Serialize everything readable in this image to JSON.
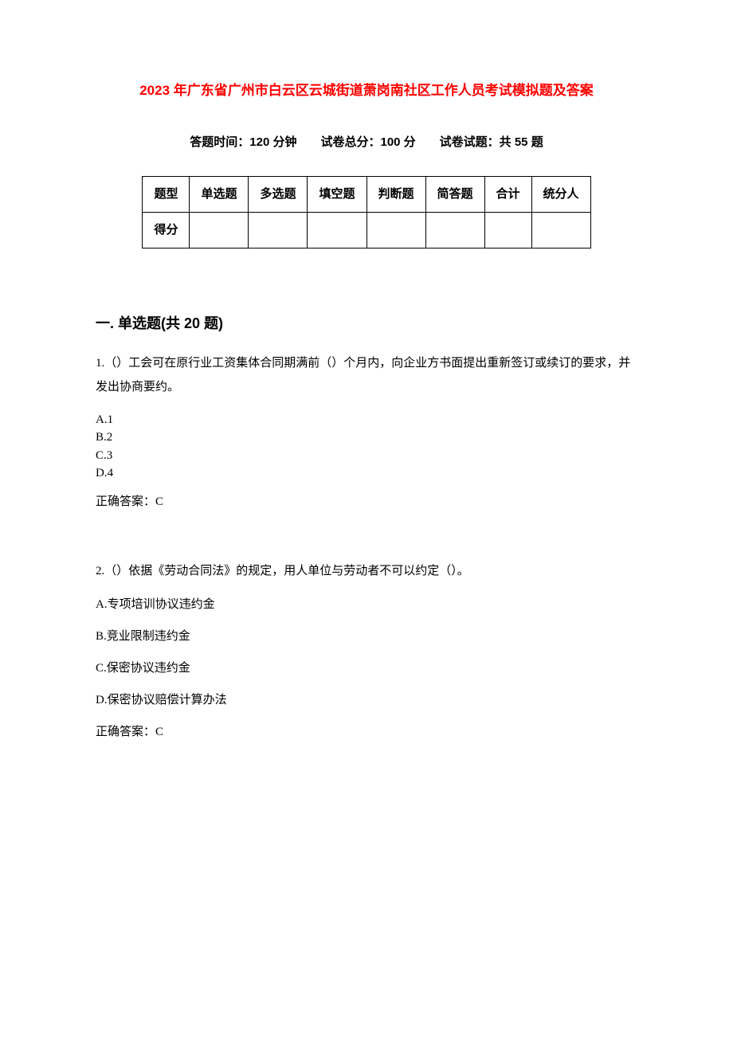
{
  "title": "2023 年广东省广州市白云区云城街道萧岗南社区工作人员考试模拟题及答案",
  "exam_info": "答题时间：120 分钟　　试卷总分：100 分　　试卷试题：共 55 题",
  "score_table": {
    "headers": [
      "题型",
      "单选题",
      "多选题",
      "填空题",
      "判断题",
      "简答题",
      "合计",
      "统分人"
    ],
    "row_label": "得分",
    "empty_cells": [
      "",
      "",
      "",
      "",
      "",
      "",
      ""
    ]
  },
  "section1": {
    "title": "一. 单选题(共 20 题)",
    "questions": [
      {
        "text": "1.（）工会可在原行业工资集体合同期满前（）个月内，向企业方书面提出重新签订或续订的要求，并发出协商要约。",
        "options": [
          "A.1",
          "B.2",
          "C.3",
          "D.4"
        ],
        "answer": "正确答案：C",
        "spaced": false
      },
      {
        "text": "2.（）依据《劳动合同法》的规定，用人单位与劳动者不可以约定（）。",
        "options": [
          "A.专项培训协议违约金",
          "B.竞业限制违约金",
          "C.保密协议违约金",
          "D.保密协议赔偿计算办法"
        ],
        "answer": "正确答案：C",
        "spaced": true
      }
    ]
  }
}
